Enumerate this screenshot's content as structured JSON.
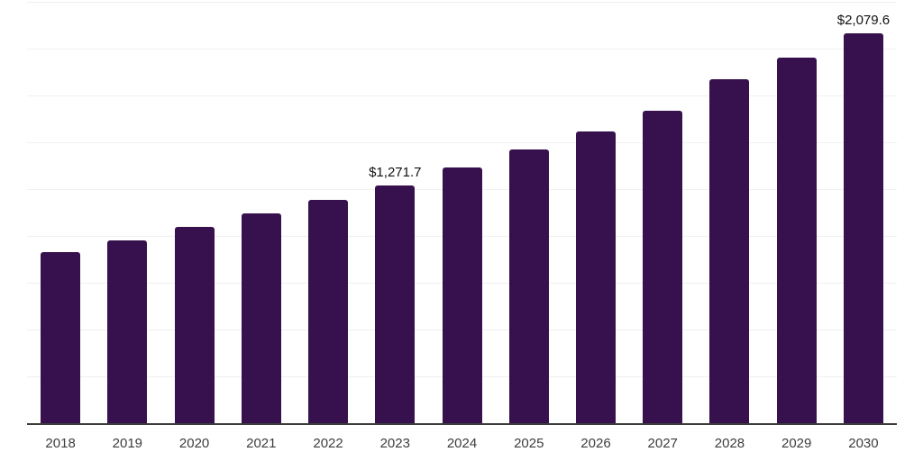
{
  "chart_data": {
    "type": "bar",
    "title": "",
    "xlabel": "",
    "ylabel": "",
    "legend": "none",
    "grid": "horizontal",
    "categories": [
      "2018",
      "2019",
      "2020",
      "2021",
      "2022",
      "2023",
      "2024",
      "2025",
      "2026",
      "2027",
      "2028",
      "2029",
      "2030"
    ],
    "values": [
      913,
      978,
      1046,
      1119,
      1194,
      1271.7,
      1364,
      1460,
      1557,
      1670,
      1836,
      1951,
      2079.6
    ],
    "value_labels": [
      {
        "category": "2023",
        "text": "$1,271.7"
      },
      {
        "category": "2030",
        "text": "$2,079.6"
      }
    ],
    "ylim": [
      0,
      2250
    ],
    "gridline_step": 250,
    "colors": {
      "bar": "#37114d",
      "gridline": "#f0f0f0",
      "axis_line": "#3b3b3b",
      "tick_label": "#3d3d3d",
      "value_label": "#111111",
      "background": "#ffffff"
    }
  }
}
